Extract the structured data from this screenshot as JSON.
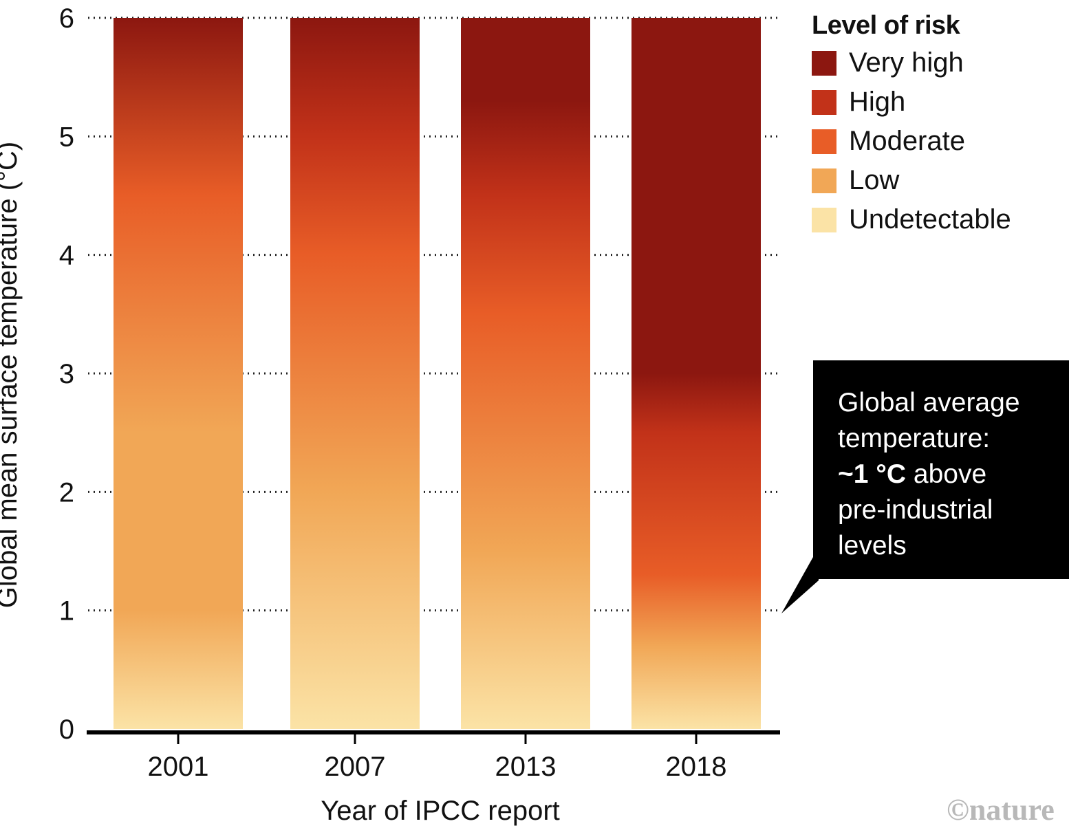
{
  "chart_data": {
    "type": "bar",
    "title": "",
    "xlabel": "Year of IPCC report",
    "ylabel": "Global mean surface temperature (°C)",
    "ylim": [
      0,
      6
    ],
    "yticks": [
      "0",
      "1",
      "2",
      "3",
      "4",
      "5",
      "6"
    ],
    "grid": "dotted horizontal",
    "categories": [
      "2001",
      "2007",
      "2013",
      "2018"
    ],
    "values": [
      6,
      6,
      6,
      6
    ],
    "legend": {
      "title": "Level of risk",
      "placement": "top-right",
      "items": [
        {
          "label": "Very high",
          "color": "#8c1710"
        },
        {
          "label": "High",
          "color": "#c23219"
        },
        {
          "label": "Moderate",
          "color": "#e85d27"
        },
        {
          "label": "Low",
          "color": "#f1a756"
        },
        {
          "label": "Undetectable",
          "color": "#fbe3a6"
        }
      ]
    },
    "risk_gradients": [
      {
        "year": "2001",
        "stops": [
          {
            "temp": 0,
            "level": "Undetectable"
          },
          {
            "temp": 1,
            "level": "Low"
          },
          {
            "temp": 2.5,
            "level": "Low"
          },
          {
            "temp": 4.5,
            "level": "Moderate"
          },
          {
            "temp": 6,
            "level": "Very high"
          }
        ]
      },
      {
        "year": "2007",
        "stops": [
          {
            "temp": 0,
            "level": "Undetectable"
          },
          {
            "temp": 2,
            "level": "Low"
          },
          {
            "temp": 4,
            "level": "Moderate"
          },
          {
            "temp": 5,
            "level": "High"
          },
          {
            "temp": 6,
            "level": "Very high"
          }
        ]
      },
      {
        "year": "2013",
        "stops": [
          {
            "temp": 0,
            "level": "Undetectable"
          },
          {
            "temp": 1.5,
            "level": "Low"
          },
          {
            "temp": 3.5,
            "level": "Moderate"
          },
          {
            "temp": 4.5,
            "level": "High"
          },
          {
            "temp": 5.3,
            "level": "Very high"
          },
          {
            "temp": 6,
            "level": "Very high"
          }
        ]
      },
      {
        "year": "2018",
        "stops": [
          {
            "temp": 0,
            "level": "Undetectable"
          },
          {
            "temp": 0.7,
            "level": "Low"
          },
          {
            "temp": 1.3,
            "level": "Moderate"
          },
          {
            "temp": 2.5,
            "level": "High"
          },
          {
            "temp": 3,
            "level": "Very high"
          },
          {
            "temp": 6,
            "level": "Very high"
          }
        ]
      }
    ],
    "annotation": {
      "text_line1": "Global average",
      "text_line2": "temperature:",
      "text_bold": "~1 °C",
      "text_after_bold": " above",
      "text_line4": "pre-industrial",
      "text_line5": "levels",
      "points_to_temp": 1
    }
  },
  "credit": "©nature"
}
